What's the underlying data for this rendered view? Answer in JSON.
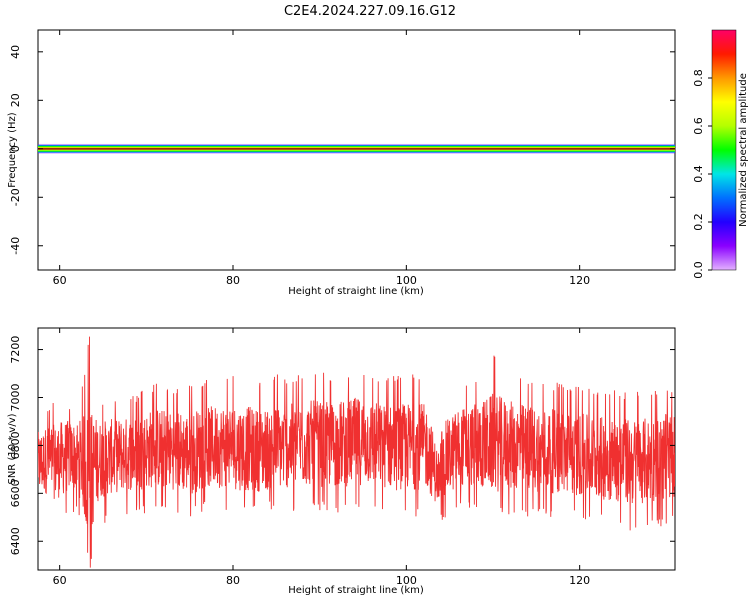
{
  "chart_data": [
    {
      "type": "heatmap",
      "title": "C2E4.2024.227.09.16.G12",
      "xlabel": "Height of straight line (km)",
      "ylabel": "Frequency (Hz)",
      "xlim": [
        57.5,
        131
      ],
      "ylim": [
        -50,
        49
      ],
      "xticks": [
        "60",
        "80",
        "100",
        "120"
      ],
      "yticks": [
        "40",
        "20",
        "0",
        "-20",
        "-40"
      ],
      "colorbar": {
        "label": "Normalized spectral amplitude",
        "range": [
          0,
          1
        ],
        "ticks": [
          "0.0",
          "0.2",
          "0.4",
          "0.6",
          "0.8"
        ],
        "colormap": "rainbow",
        "stops": [
          "#e3b2ff",
          "#8a00ff",
          "#2200ff",
          "#0070ff",
          "#00e6e6",
          "#00ff00",
          "#b4ff00",
          "#ffff00",
          "#ff9900",
          "#ff1a00",
          "#ff0066"
        ]
      },
      "bands": [
        {
          "freq_min": -2,
          "freq_max": 2,
          "level": 0.1
        },
        {
          "freq_min": -1.6,
          "freq_max": 1.6,
          "level": 0.25
        },
        {
          "freq_min": -1.2,
          "freq_max": 1.2,
          "level": 0.45
        },
        {
          "freq_min": -0.8,
          "freq_max": 0.8,
          "level": 0.6
        },
        {
          "freq_min": -0.5,
          "freq_max": 0.5,
          "level": 0.75
        },
        {
          "freq_min": -0.25,
          "freq_max": 0.25,
          "level": 0.9
        }
      ],
      "grid": false
    },
    {
      "type": "line",
      "xlabel": "Height of straight line (km)",
      "ylabel": "SNR (10 * v/v)",
      "xlim": [
        57.5,
        131
      ],
      "ylim": [
        6280,
        7290
      ],
      "xticks": [
        "60",
        "80",
        "100",
        "120"
      ],
      "yticks": [
        "7200",
        "7000",
        "6800",
        "6600",
        "6400"
      ],
      "series": [
        {
          "color": "#f03030",
          "x": [
            57.5,
            58.5,
            59.5,
            60.5,
            61.5,
            62.5,
            63.0,
            63.5,
            64.0,
            64.5,
            65.5,
            67,
            69,
            71,
            73,
            75,
            77,
            79,
            81,
            83,
            85,
            87,
            89,
            91,
            93,
            95,
            97,
            99,
            101,
            102.5,
            103.2,
            103.8,
            104.5,
            106,
            108,
            110,
            112,
            114,
            116,
            118,
            120,
            122,
            124,
            126,
            128,
            130,
            131
          ],
          "y": [
            6720,
            6740,
            6730,
            6750,
            6760,
            6740,
            6700,
            6650,
            6720,
            6740,
            6750,
            6760,
            6770,
            6790,
            6780,
            6770,
            6790,
            6800,
            6790,
            6780,
            6790,
            6800,
            6810,
            6800,
            6810,
            6820,
            6800,
            6790,
            6800,
            6790,
            6700,
            6660,
            6740,
            6790,
            6800,
            6810,
            6800,
            6790,
            6780,
            6770,
            6760,
            6750,
            6740,
            6730,
            6740,
            6750,
            6760
          ],
          "envelope_max": [
            6920,
            6960,
            7000,
            7010,
            6960,
            7050,
            7150,
            7280,
            7080,
            6980,
            6990,
            7000,
            7020,
            7060,
            7050,
            7070,
            7080,
            7090,
            7090,
            7080,
            7100,
            7090,
            7120,
            7100,
            7110,
            7130,
            7100,
            7100,
            7100,
            7090,
            6880,
            6790,
            7020,
            7060,
            7090,
            7190,
            7110,
            7080,
            7070,
            7060,
            7050,
            7040,
            7030,
            7030,
            7020,
            7040,
            7030
          ],
          "envelope_min": [
            6480,
            6500,
            6490,
            6500,
            6510,
            6500,
            6360,
            6280,
            6400,
            6450,
            6480,
            6500,
            6520,
            6510,
            6520,
            6500,
            6530,
            6520,
            6510,
            6520,
            6530,
            6520,
            6540,
            6520,
            6520,
            6530,
            6530,
            6520,
            6500,
            6520,
            6440,
            6470,
            6500,
            6520,
            6530,
            6520,
            6510,
            6500,
            6500,
            6490,
            6490,
            6480,
            6460,
            6440,
            6450,
            6460,
            6470
          ]
        }
      ],
      "grid": false
    }
  ]
}
